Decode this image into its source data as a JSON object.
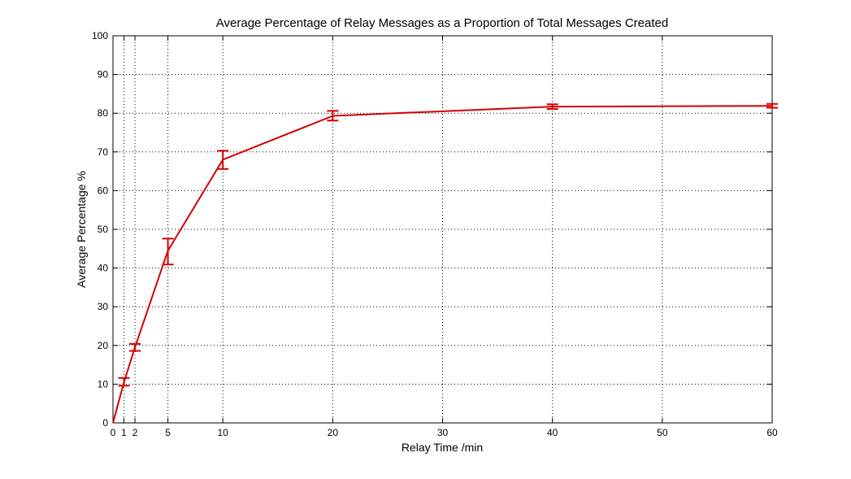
{
  "chart_data": {
    "type": "line",
    "title": "Average Percentage of Relay Messages as a Proportion of Total Messages Created",
    "xlabel": "Relay Time /min",
    "ylabel": "Average Percentage %",
    "xlim": [
      0,
      60
    ],
    "ylim": [
      0,
      100
    ],
    "x_ticks": [
      0,
      1,
      2,
      5,
      10,
      20,
      30,
      40,
      50,
      60
    ],
    "y_ticks": [
      0,
      10,
      20,
      30,
      40,
      50,
      60,
      70,
      80,
      90,
      100
    ],
    "grid": true,
    "legend": "none",
    "series": [
      {
        "color": "#d40000",
        "x": [
          0,
          1,
          2,
          5,
          10,
          20,
          40,
          60
        ],
        "y": [
          0,
          10.5,
          19.5,
          44.5,
          68,
          79.3,
          81.7,
          81.9
        ],
        "error_low": [
          0,
          9.6,
          18.6,
          40.9,
          65.6,
          78.1,
          81.1,
          81.4
        ],
        "error_high": [
          0,
          11.6,
          20.4,
          47.6,
          70.3,
          80.6,
          82.3,
          82.4
        ]
      }
    ]
  }
}
